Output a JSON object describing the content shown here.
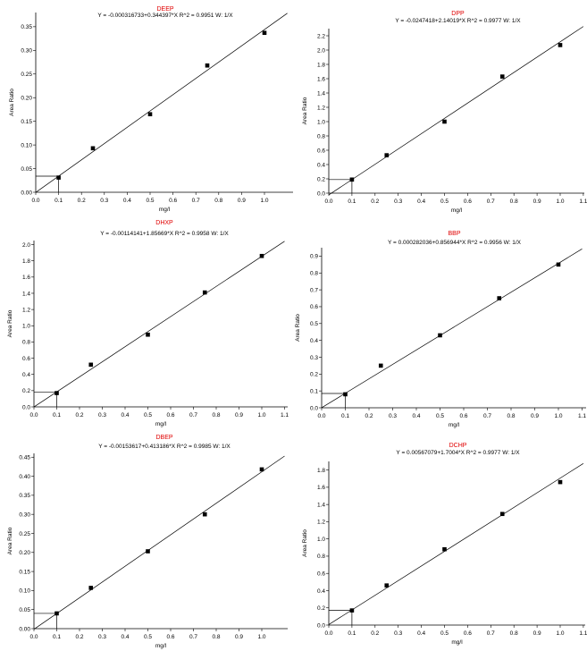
{
  "chart_data": [
    {
      "type": "scatter",
      "title": "DEEP",
      "equation": "Y = -0.000316733+0.344397*X   R^2 = 0.9951   W: 1/X",
      "xlabel": "mg/l",
      "ylabel": "Area Ratio",
      "xlim": [
        0,
        1.1
      ],
      "ylim": [
        0,
        0.38
      ],
      "x_ticks": [
        "0.0",
        "0.1",
        "0.2",
        "0.3",
        "0.4",
        "0.5",
        "0.6",
        "0.7",
        "0.8",
        "0.9",
        "1.0"
      ],
      "y_ticks": [
        "0.00",
        "0.05",
        "0.10",
        "0.15",
        "0.20",
        "0.25",
        "0.30",
        "0.35"
      ],
      "intercept": -0.000316733,
      "slope": 0.344397,
      "fit_xmax": 1.1,
      "marker": {
        "x": 0.1,
        "y": 0.034
      },
      "points": [
        {
          "x": 0.1,
          "y": 0.031
        },
        {
          "x": 0.25,
          "y": 0.093
        },
        {
          "x": 0.5,
          "y": 0.165
        },
        {
          "x": 0.75,
          "y": 0.268
        },
        {
          "x": 1.0,
          "y": 0.337
        }
      ]
    },
    {
      "type": "scatter",
      "title": "DPP",
      "equation": "Y = -0.0247418+2.14019*X   R^2 = 0.9977   W: 1/X",
      "xlabel": "mg/l",
      "ylabel": "Area Ratio",
      "xlim": [
        0,
        1.1
      ],
      "ylim": [
        0,
        2.3
      ],
      "x_ticks": [
        "0.0",
        "0.1",
        "0.2",
        "0.3",
        "0.4",
        "0.5",
        "0.6",
        "0.7",
        "0.8",
        "0.9",
        "1.0",
        "1.1"
      ],
      "y_ticks": [
        "0.0",
        "0.2",
        "0.4",
        "0.6",
        "0.8",
        "1.0",
        "1.2",
        "1.4",
        "1.6",
        "1.8",
        "2.0",
        "2.2"
      ],
      "intercept": -0.0247418,
      "slope": 2.14019,
      "fit_xmax": 1.1,
      "marker": {
        "x": 0.1,
        "y": 0.19
      },
      "points": [
        {
          "x": 0.1,
          "y": 0.19
        },
        {
          "x": 0.25,
          "y": 0.53
        },
        {
          "x": 0.5,
          "y": 1.0
        },
        {
          "x": 0.75,
          "y": 1.63
        },
        {
          "x": 1.0,
          "y": 2.07
        }
      ]
    },
    {
      "type": "scatter",
      "title": "DHXP",
      "equation": "Y = -0.00114141+1.85669*X   R^2 = 0.9958   W: 1/X",
      "xlabel": "mg/l",
      "ylabel": "Area Ratio",
      "xlim": [
        0,
        1.1
      ],
      "ylim": [
        0,
        2.05
      ],
      "x_ticks": [
        "0.0",
        "0.1",
        "0.2",
        "0.3",
        "0.4",
        "0.5",
        "0.6",
        "0.7",
        "0.8",
        "0.9",
        "1.0",
        "1.1"
      ],
      "y_ticks": [
        "0.0",
        "0.2",
        "0.4",
        "0.6",
        "0.8",
        "1.0",
        "1.2",
        "1.4",
        "1.6",
        "1.8",
        "2.0"
      ],
      "intercept": -0.00114141,
      "slope": 1.85669,
      "fit_xmax": 1.1,
      "marker": {
        "x": 0.1,
        "y": 0.18
      },
      "points": [
        {
          "x": 0.1,
          "y": 0.17
        },
        {
          "x": 0.25,
          "y": 0.52
        },
        {
          "x": 0.5,
          "y": 0.89
        },
        {
          "x": 0.75,
          "y": 1.41
        },
        {
          "x": 1.0,
          "y": 1.86
        }
      ]
    },
    {
      "type": "scatter",
      "title": "BBP",
      "equation": "Y = 0.000282036+0.856944*X   R^2 = 0.9956   W: 1/X",
      "xlabel": "mg/l",
      "ylabel": "Area Ratio",
      "xlim": [
        0,
        1.1
      ],
      "ylim": [
        0,
        0.95
      ],
      "x_ticks": [
        "0.0",
        "0.1",
        "0.2",
        "0.3",
        "0.4",
        "0.5",
        "0.6",
        "0.7",
        "0.8",
        "0.9",
        "1.0",
        "1.1"
      ],
      "y_ticks": [
        "0.0",
        "0.1",
        "0.2",
        "0.3",
        "0.4",
        "0.5",
        "0.6",
        "0.7",
        "0.8",
        "0.9"
      ],
      "intercept": 0.000282036,
      "slope": 0.856944,
      "fit_xmax": 1.1,
      "marker": {
        "x": 0.1,
        "y": 0.085
      },
      "points": [
        {
          "x": 0.1,
          "y": 0.08
        },
        {
          "x": 0.25,
          "y": 0.25
        },
        {
          "x": 0.5,
          "y": 0.43
        },
        {
          "x": 0.75,
          "y": 0.65
        },
        {
          "x": 1.0,
          "y": 0.85
        }
      ]
    },
    {
      "type": "scatter",
      "title": "DBEP",
      "equation": "Y = -0.00153617+0.413186*X   R^2 = 0.9985   W: 1/X",
      "xlabel": "mg/l",
      "ylabel": "Area Ratio",
      "xlim": [
        0,
        1.1
      ],
      "ylim": [
        0,
        0.46
      ],
      "x_ticks": [
        "0.0",
        "0.1",
        "0.2",
        "0.3",
        "0.4",
        "0.5",
        "0.6",
        "0.7",
        "0.8",
        "0.9",
        "1.0"
      ],
      "y_ticks": [
        "0.00",
        "0.05",
        "0.10",
        "0.15",
        "0.20",
        "0.25",
        "0.30",
        "0.35",
        "0.40",
        "0.45"
      ],
      "intercept": -0.00153617,
      "slope": 0.413186,
      "fit_xmax": 1.1,
      "marker": {
        "x": 0.1,
        "y": 0.04
      },
      "points": [
        {
          "x": 0.1,
          "y": 0.04
        },
        {
          "x": 0.25,
          "y": 0.107
        },
        {
          "x": 0.5,
          "y": 0.203
        },
        {
          "x": 0.75,
          "y": 0.3
        },
        {
          "x": 1.0,
          "y": 0.418
        }
      ]
    },
    {
      "type": "scatter",
      "title": "DCHP",
      "equation": "Y = 0.00567079+1.7004*X   R^2 = 0.9977   W: 1/X",
      "xlabel": "mg/l",
      "ylabel": "Area Ratio",
      "xlim": [
        0,
        1.1
      ],
      "ylim": [
        0,
        1.9
      ],
      "x_ticks": [
        "0.0",
        "0.1",
        "0.2",
        "0.3",
        "0.4",
        "0.5",
        "0.6",
        "0.7",
        "0.8",
        "0.9",
        "1.0",
        "1.1"
      ],
      "y_ticks": [
        "0.0",
        "0.2",
        "0.4",
        "0.6",
        "0.8",
        "1.0",
        "1.2",
        "1.4",
        "1.6",
        "1.8"
      ],
      "intercept": 0.00567079,
      "slope": 1.7004,
      "fit_xmax": 1.1,
      "marker": {
        "x": 0.1,
        "y": 0.17
      },
      "points": [
        {
          "x": 0.1,
          "y": 0.17
        },
        {
          "x": 0.25,
          "y": 0.46
        },
        {
          "x": 0.5,
          "y": 0.88
        },
        {
          "x": 0.75,
          "y": 1.29
        },
        {
          "x": 1.0,
          "y": 1.66
        }
      ]
    }
  ]
}
